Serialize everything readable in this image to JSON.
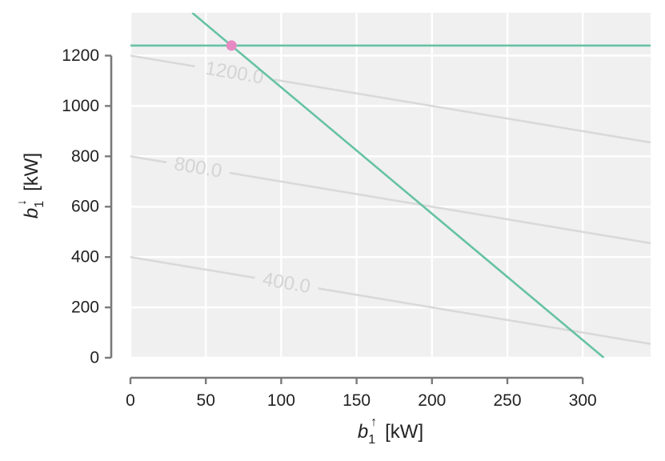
{
  "chart_data": {
    "type": "line",
    "title": "",
    "x_axis": {
      "variable": "b",
      "subscript": "1",
      "superscript": "↑",
      "unit": "[kW]",
      "range": [
        0,
        345
      ],
      "ticks": [
        0,
        50,
        100,
        150,
        200,
        250,
        300
      ],
      "tick_labels": [
        "0",
        "50",
        "100",
        "150",
        "200",
        "250",
        "300"
      ]
    },
    "y_axis": {
      "variable": "b",
      "subscript": "1",
      "superscript": "↓",
      "unit": "[kW]",
      "range": [
        0,
        1370
      ],
      "ticks": [
        0,
        200,
        400,
        600,
        800,
        1000,
        1200
      ],
      "tick_labels": [
        "0",
        "200",
        "400",
        "600",
        "800",
        "1000",
        "1200"
      ]
    },
    "grid": true,
    "background_color": "#f0f0f0",
    "grid_color": "#ffffff",
    "contours": {
      "color": "#d9d9d9",
      "label_color": "#d4d4d4",
      "lines": [
        {
          "level": 400,
          "label": "400.0",
          "points": [
            [
              0,
              400
            ],
            [
              345,
              55
            ]
          ]
        },
        {
          "level": 800,
          "label": "800.0",
          "points": [
            [
              0,
              800
            ],
            [
              345,
              455
            ]
          ]
        },
        {
          "level": 1200,
          "label": "1200.0",
          "points": [
            [
              0,
              1200
            ],
            [
              345,
              855
            ]
          ]
        }
      ]
    },
    "constraint_lines": {
      "color": "#66c2a5",
      "lines": [
        {
          "points": [
            [
              0,
              1240
            ],
            [
              345,
              1240
            ]
          ]
        },
        {
          "points": [
            [
              41,
              1370
            ],
            [
              314,
              0
            ]
          ]
        }
      ]
    },
    "marker": {
      "x": 67,
      "y": 1240,
      "color": "#e78ac3"
    }
  }
}
